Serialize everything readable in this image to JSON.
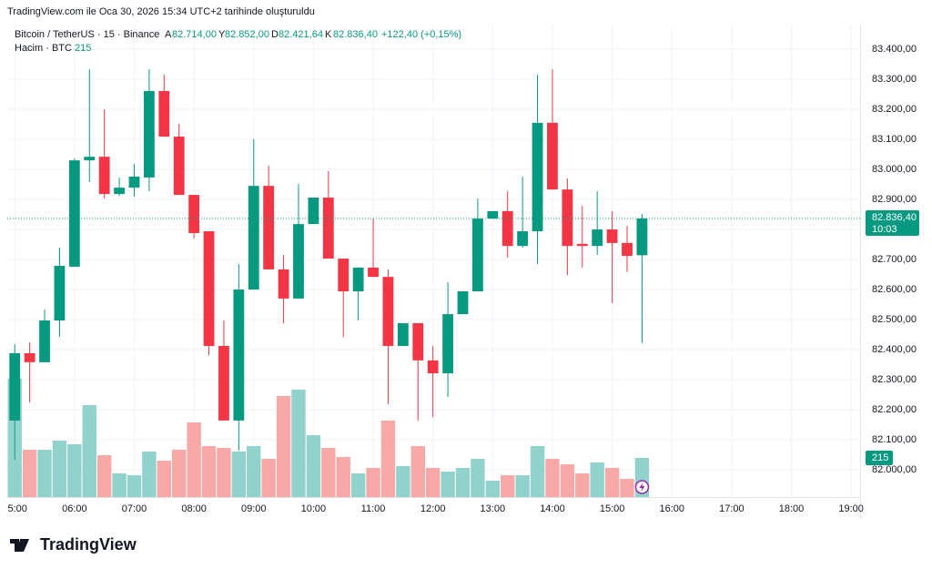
{
  "header": {
    "created": "TradingView.com ile Oca 30, 2026 15:34 UTC+2 tarihinde oluşturuldu",
    "symbol": "Bitcoin / TetherUS · 15 · Binance",
    "open_label": "A",
    "open_value": "82.714,00",
    "high_label": "Y",
    "high_value": "82.852,00",
    "low_label": "D",
    "low_value": "82.421,64",
    "close_label": "K",
    "close_value": "82.836,40",
    "change": "+122,40 (+0,15%)",
    "volume_title": "Hacim · BTC",
    "volume_value": "215",
    "countdown": "10:03"
  },
  "logo": "TradingView",
  "chart_data": {
    "type": "candlestick",
    "categories": [
      null,
      null,
      null,
      null,
      null,
      null,
      null,
      null,
      null,
      null,
      null,
      null,
      null,
      null,
      null,
      null,
      null,
      null,
      null,
      null,
      null,
      null,
      null,
      null,
      null,
      null,
      null,
      null,
      null,
      null,
      null,
      null,
      null,
      null,
      null,
      null,
      null,
      null,
      null,
      null,
      null,
      null,
      null
    ],
    "open": [
      82164,
      82388,
      82358,
      82497,
      82676,
      83030,
      83042,
      82918,
      82939,
      82973,
      83261,
      83109,
      82915,
      82794,
      82412,
      82164,
      82600,
      82945,
      82667,
      82570,
      82818,
      82906,
      82703,
      82594,
      82673,
      82642,
      82412,
      82488,
      82364,
      82321,
      82518,
      82594,
      82836,
      82861,
      82745,
      82794,
      83155,
      82933,
      82752,
      82745,
      82800,
      82755,
      82714
    ],
    "high": [
      82418,
      82424,
      82533,
      82739,
      83036,
      83333,
      83200,
      82973,
      83018,
      83333,
      83315,
      83152,
      82915,
      82794,
      82497,
      82685,
      83100,
      83012,
      82715,
      82952,
      82906,
      82994,
      82703,
      82673,
      82836,
      82667,
      82488,
      82488,
      82412,
      82624,
      82594,
      82903,
      82861,
      82927,
      82976,
      83315,
      83333,
      82970,
      82879,
      82927,
      82861,
      82812,
      82852
    ],
    "low": [
      82033,
      82224,
      82358,
      82442,
      82676,
      82958,
      82903,
      82912,
      82909,
      82927,
      83109,
      82915,
      82770,
      82382,
      82164,
      82064,
      82600,
      82667,
      82488,
      82570,
      82818,
      82703,
      82442,
      82497,
      82642,
      82218,
      82412,
      82164,
      82176,
      82242,
      82518,
      82594,
      82836,
      82706,
      82739,
      82685,
      82933,
      82648,
      82673,
      82715,
      82555,
      82658,
      82421.64
    ],
    "close": [
      82388,
      82358,
      82497,
      82679,
      83030,
      83042,
      82918,
      82939,
      82976,
      83261,
      83109,
      82915,
      82788,
      82412,
      82164,
      82600,
      82945,
      82667,
      82570,
      82818,
      82906,
      82703,
      82594,
      82673,
      82642,
      82412,
      82488,
      82364,
      82321,
      82518,
      82594,
      82836,
      82861,
      82745,
      82794,
      83155,
      82933,
      82745,
      82745,
      82800,
      82755,
      82712,
      82836.4
    ],
    "volume": [
      650,
      260,
      260,
      310,
      290,
      505,
      230,
      130,
      120,
      250,
      200,
      260,
      410,
      280,
      270,
      250,
      280,
      210,
      555,
      590,
      340,
      270,
      220,
      130,
      160,
      420,
      170,
      280,
      160,
      140,
      160,
      210,
      90,
      120,
      120,
      280,
      210,
      180,
      130,
      190,
      160,
      100,
      215
    ],
    "up_color": "#089981",
    "down_color": "#f23645",
    "volume_up_color": "#92d2cc",
    "volume_down_color": "#f7a9a7",
    "xlim": [
      -0.5,
      56.6
    ],
    "xticks": [
      {
        "value": 0,
        "label": "5:00"
      },
      {
        "value": 4,
        "label": "06:00"
      },
      {
        "value": 8,
        "label": "07:00"
      },
      {
        "value": 12,
        "label": "08:00"
      },
      {
        "value": 16,
        "label": "09:00"
      },
      {
        "value": 20,
        "label": "10:00"
      },
      {
        "value": 24,
        "label": "11:00"
      },
      {
        "value": 28,
        "label": "12:00"
      },
      {
        "value": 32,
        "label": "13:00"
      },
      {
        "value": 36,
        "label": "14:00"
      },
      {
        "value": 40,
        "label": "15:00"
      },
      {
        "value": 44,
        "label": "16:00"
      },
      {
        "value": 48,
        "label": "17:00"
      },
      {
        "value": 52,
        "label": "18:00"
      },
      {
        "value": 56,
        "label": "19:00"
      }
    ],
    "ylim": [
      81909,
      83479
    ],
    "yticks": [
      {
        "value": 82000,
        "label": "82.000,00"
      },
      {
        "value": 82100,
        "label": "82.100,00"
      },
      {
        "value": 82200,
        "label": "82.200,00"
      },
      {
        "value": 82300,
        "label": "82.300,00"
      },
      {
        "value": 82400,
        "label": "82.400,00"
      },
      {
        "value": 82500,
        "label": "82.500,00"
      },
      {
        "value": 82600,
        "label": "82.600,00"
      },
      {
        "value": 82700,
        "label": "82.700,00"
      },
      {
        "value": 82800,
        "label": "82.800,00"
      },
      {
        "value": 82900,
        "label": "82.900,00"
      },
      {
        "value": 83000,
        "label": "83.000,00"
      },
      {
        "value": 83100,
        "label": "83.100,00"
      },
      {
        "value": 83200,
        "label": "83.200,00"
      },
      {
        "value": 83300,
        "label": "83.300,00"
      },
      {
        "value": 83400,
        "label": "83.400,00"
      }
    ],
    "y2lim": [
      0,
      2590
    ],
    "grid": true
  }
}
